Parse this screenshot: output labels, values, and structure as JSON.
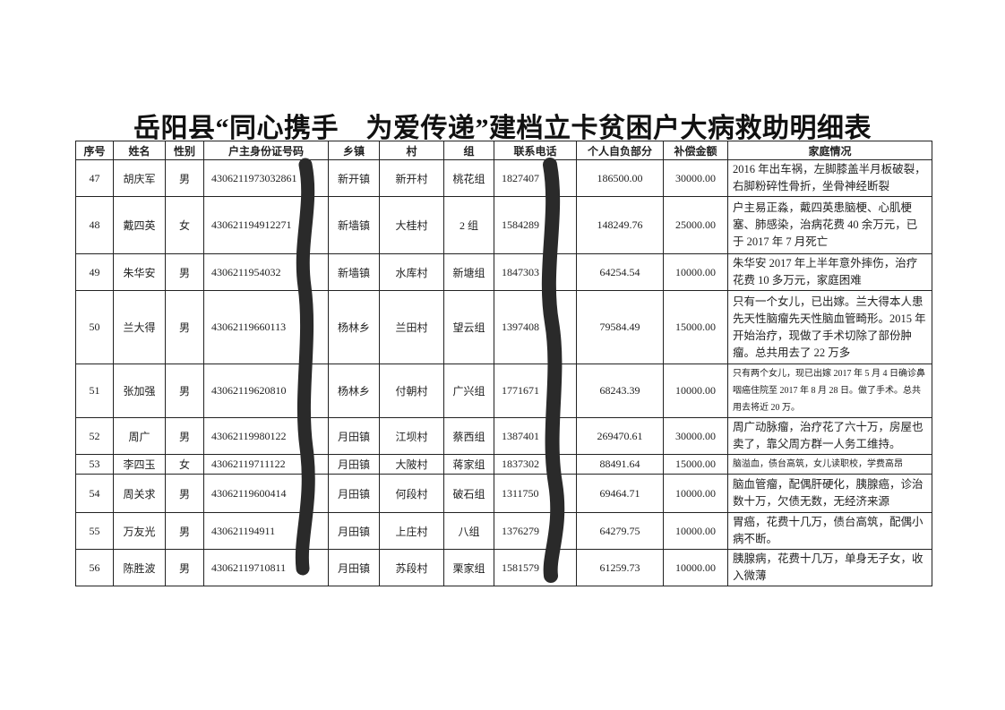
{
  "header": {
    "title": "岳阳县“同心携手　为爱传递”建档立卡贫困户大病救助明细表"
  },
  "table": {
    "header": [
      "序号",
      "姓名",
      "性别",
      "户主身份证号码",
      "乡镇",
      "村",
      "组",
      "联系电话",
      "个人自负部分",
      "补偿金额",
      "家庭情况"
    ],
    "rows": [
      [
        "47",
        "胡庆军",
        "男",
        "4306211973032861",
        "新开镇",
        "新开村",
        "桃花组",
        "1827407",
        "186500.00",
        "30000.00",
        "2016 年出车祸，左脚膝盖半月板破裂，右脚粉碎性骨折，坐骨神经断裂"
      ],
      [
        "48",
        "戴四英",
        "女",
        "430621194912271",
        "新墙镇",
        "大桂村",
        "2 组",
        "1584289",
        "148249.76",
        "25000.00",
        "户主易正淼，戴四英患脑梗、心肌梗塞、肺感染，治病花费 40 余万元，已于 2017 年 7 月死亡"
      ],
      [
        "49",
        "朱华安",
        "男",
        "4306211954032",
        "新墙镇",
        "水库村",
        "新塘组",
        "1847303",
        "64254.54",
        "10000.00",
        "朱华安 2017 年上半年意外摔伤，治疗花费 10 多万元，家庭困难"
      ],
      [
        "50",
        "兰大得",
        "男",
        "43062119660113",
        "杨林乡",
        "兰田村",
        "望云组",
        "1397408",
        "79584.49",
        "15000.00",
        "只有一个女儿，已出嫁。兰大得本人患先天性脑瘤先天性脑血管畸形。2015 年开始治疗，现做了手术切除了部份肿瘤。总共用去了 22 万多"
      ],
      [
        "51",
        "张加强",
        "男",
        "43062119620810",
        "杨林乡",
        "付朝村",
        "广兴组",
        "1771671",
        "68243.39",
        "10000.00",
        "只有两个女儿，现已出嫁 2017 年 5 月 4 日确诊鼻咽癌住院至 2017 年 8 月 28 日。做了手术。总共用去将近 20 万。"
      ],
      [
        "52",
        "周广",
        "男",
        "43062119980122",
        "月田镇",
        "江坝村",
        "蔡西组",
        "1387401",
        "269470.61",
        "30000.00",
        "周广动脉瘤，治疗花了六十万，房屋也卖了，靠父周方群一人务工维持。"
      ],
      [
        "53",
        "李四玉",
        "女",
        "43062119711122",
        "月田镇",
        "大陂村",
        "蒋家组",
        "1837302",
        "88491.64",
        "15000.00",
        "脑溢血，债台高筑，女儿读职校，学费高昂"
      ],
      [
        "54",
        "周关求",
        "男",
        "43062119600414",
        "月田镇",
        "何段村",
        "破石组",
        "1311750",
        "69464.71",
        "10000.00",
        "脑血管瘤，配偶肝硬化，胰腺癌，诊治数十万，欠债无数，无经济来源"
      ],
      [
        "55",
        "万友光",
        "男",
        "430621194911",
        "月田镇",
        "上庄村",
        "八组",
        "1376279",
        "64279.75",
        "10000.00",
        "胃癌，花费十几万，债台高筑，配偶小病不断。"
      ],
      [
        "56",
        "陈胜波",
        "男",
        "43062119710811",
        "月田镇",
        "苏段村",
        "栗家组",
        "1581579",
        "61259.73",
        "10000.00",
        "胰腺病，花费十几万，单身无子女，收入微薄"
      ]
    ]
  }
}
